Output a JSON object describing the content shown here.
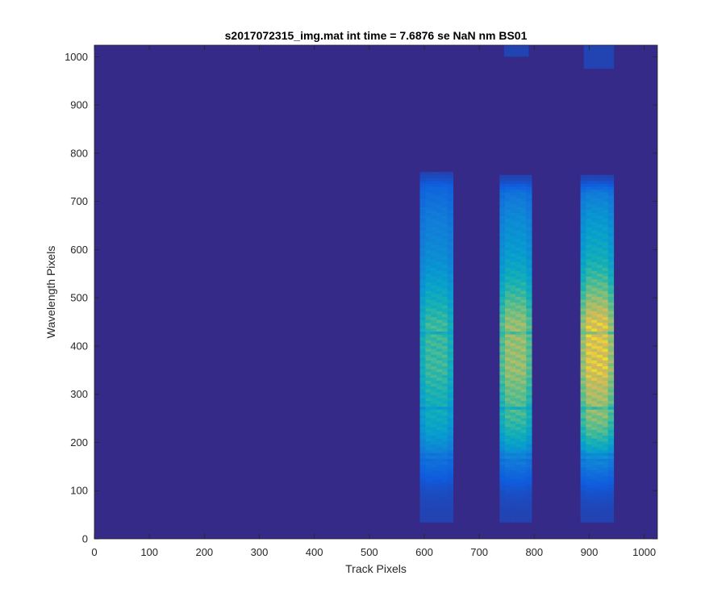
{
  "chart_data": {
    "type": "heatmap",
    "title": "s2017072315_img.mat int time = 7.6876 se  NaN nm BS01",
    "xlabel": "Track Pixels",
    "ylabel": "Wavelength Pixels",
    "xlim": [
      0,
      1024
    ],
    "ylim": [
      0,
      1024
    ],
    "x_ticks": [
      0,
      100,
      200,
      300,
      400,
      500,
      600,
      700,
      800,
      900,
      1000
    ],
    "y_ticks": [
      0,
      100,
      200,
      300,
      400,
      500,
      600,
      700,
      800,
      900,
      1000
    ],
    "colormap": "parula",
    "background_color": "#352A87",
    "grid": false,
    "bands": [
      {
        "x_start": 592,
        "x_end": 652,
        "y_start": 35,
        "y_end": 760,
        "peak_intensity": 0.55
      },
      {
        "x_start": 737,
        "x_end": 795,
        "y_start": 35,
        "y_end": 750,
        "peak_intensity": 0.72
      },
      {
        "x_start": 884,
        "x_end": 944,
        "y_start": 35,
        "y_end": 750,
        "peak_intensity": 0.88
      }
    ],
    "top_artifacts": [
      {
        "x_start": 745,
        "x_end": 790,
        "y_start": 1000,
        "y_end": 1024,
        "peak_intensity": 0.06
      },
      {
        "x_start": 890,
        "x_end": 945,
        "y_start": 975,
        "y_end": 1024,
        "peak_intensity": 0.06
      }
    ]
  }
}
